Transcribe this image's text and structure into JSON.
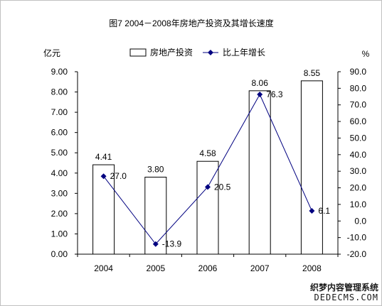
{
  "chart_data": {
    "type": "bar",
    "title": "图7  2004－2008年房地产投资及其增长速度",
    "categories": [
      "2004",
      "2005",
      "2006",
      "2007",
      "2008"
    ],
    "series": [
      {
        "name": "房地产投资",
        "kind": "bar",
        "axis": "left",
        "values": [
          4.41,
          3.8,
          4.58,
          8.06,
          8.55
        ],
        "labels": [
          "4.41",
          "3.80",
          "4.58",
          "8.06",
          "8.55"
        ]
      },
      {
        "name": "比上年增长",
        "kind": "line",
        "axis": "right",
        "values": [
          27.0,
          -13.9,
          20.5,
          76.3,
          6.1
        ],
        "labels": [
          "27.0",
          "-13.9",
          "20.5",
          "76.3",
          "6.1"
        ]
      }
    ],
    "y_left": {
      "unit": "亿元",
      "min": 0,
      "max": 9,
      "step": 1,
      "ticks": [
        "0.00",
        "1.00",
        "2.00",
        "3.00",
        "4.00",
        "5.00",
        "6.00",
        "7.00",
        "8.00",
        "9.00"
      ]
    },
    "y_right": {
      "unit": "%",
      "min": -20,
      "max": 90,
      "step": 10,
      "ticks": [
        "-20.0",
        "-10.0",
        "0.0",
        "10.0",
        "20.0",
        "30.0",
        "40.0",
        "50.0",
        "60.0",
        "70.0",
        "80.0",
        "90.0"
      ]
    },
    "legend_position": "top",
    "grid": false,
    "colors": {
      "bar_fill": "#ffffff",
      "bar_stroke": "#000000",
      "line": "#000080",
      "marker": "#000080"
    }
  },
  "watermark": {
    "line1": "织梦内容管理系统",
    "line2": "DEDECMS.COM"
  }
}
